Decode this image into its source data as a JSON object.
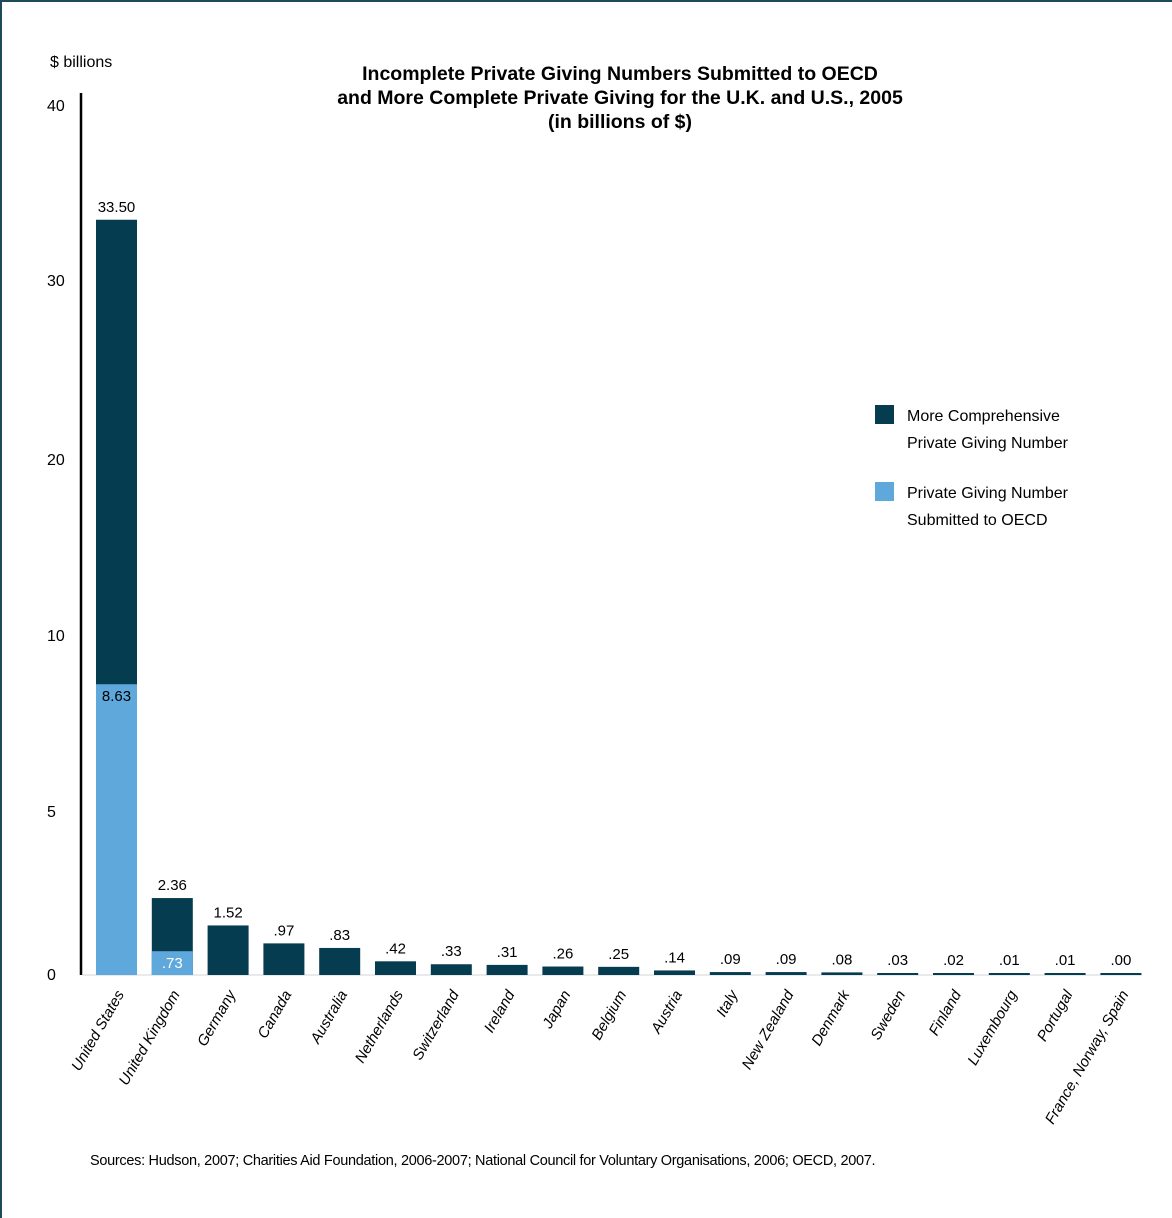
{
  "chart_data": {
    "type": "bar",
    "stacked": true,
    "title_lines": [
      "Incomplete Private Giving Numbers Submitted to OECD",
      "and More Complete Private Giving for the U.K. and U.S., 2005",
      "(in billions of $)"
    ],
    "ylabel": "$ billions",
    "yticks": [
      "0",
      "5",
      "10",
      "20",
      "30",
      "40"
    ],
    "ytick_values": [
      0,
      5,
      10,
      20,
      30,
      40
    ],
    "categories": [
      "United States",
      "United Kingdom",
      "Germany",
      "Canada",
      "Australia",
      "Netherlands",
      "Switzerland",
      "Ireland",
      "Japan",
      "Belgium",
      "Austria",
      "Italy",
      "New Zealand",
      "Denmark",
      "Sweden",
      "Finland",
      "Luxembourg",
      "Portugal",
      "France, Norway, Spain"
    ],
    "series": [
      {
        "name": "Private Giving Number Submitted to OECD",
        "color": "#5fa8dc",
        "values": [
          8.63,
          0.73,
          null,
          null,
          null,
          null,
          null,
          null,
          null,
          null,
          null,
          null,
          null,
          null,
          null,
          null,
          null,
          null,
          null
        ],
        "labels": [
          "8.63",
          ".73",
          "",
          "",
          "",
          "",
          "",
          "",
          "",
          "",
          "",
          "",
          "",
          "",
          "",
          "",
          "",
          "",
          ""
        ]
      },
      {
        "name": "More Comprehensive Private Giving Number",
        "color": "#053c50",
        "values": [
          33.5,
          2.36,
          1.52,
          0.97,
          0.83,
          0.42,
          0.33,
          0.31,
          0.26,
          0.25,
          0.14,
          0.09,
          0.09,
          0.08,
          0.03,
          0.02,
          0.01,
          0.01,
          0.0
        ],
        "labels": [
          "33.50",
          "2.36",
          "1.52",
          ".97",
          ".83",
          ".42",
          ".33",
          ".31",
          ".26",
          ".25",
          ".14",
          ".09",
          ".09",
          ".08",
          ".03",
          ".02",
          ".01",
          ".01",
          ".00"
        ]
      }
    ],
    "legend": {
      "position": "right",
      "items": [
        {
          "line1": "More Comprehensive",
          "line2": "Private Giving Number",
          "color": "#053c50"
        },
        {
          "line1": "Private Giving Number",
          "line2": "Submitted to OECD",
          "color": "#5fa8dc"
        }
      ]
    },
    "source": "Sources: Hudson, 2007; Charities Aid Foundation, 2006-2007; National Council for Voluntary Organisations, 2006; OECD, 2007."
  }
}
